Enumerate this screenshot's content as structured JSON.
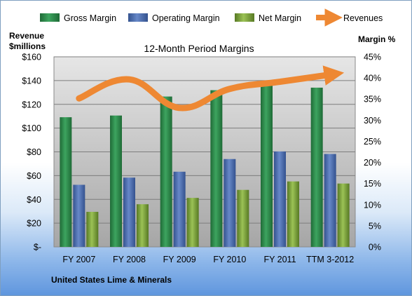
{
  "chart_data": {
    "type": "bar",
    "title": "12-Month Period Margins",
    "company": "United States Lime & Minerals",
    "left_axis_label_line1": "Revenue",
    "left_axis_label_line2": "$millions",
    "right_axis_label": "Margin %",
    "categories": [
      "FY 2007",
      "FY 2008",
      "FY 2009",
      "FY 2010",
      "FY 2011",
      "TTM 3-2012"
    ],
    "left_axis": {
      "min": 0,
      "max": 160,
      "ticks": [
        0,
        20,
        40,
        60,
        80,
        100,
        120,
        140,
        160
      ],
      "tick_labels": [
        "$-",
        "$20",
        "$40",
        "$60",
        "$80",
        "$100",
        "$120",
        "$140",
        "$160"
      ]
    },
    "right_axis": {
      "min": 0,
      "max": 45,
      "ticks": [
        0,
        5,
        10,
        15,
        20,
        25,
        30,
        35,
        40,
        45
      ],
      "tick_labels": [
        "0%",
        "5%",
        "10%",
        "15%",
        "20%",
        "25%",
        "30%",
        "35%",
        "40%",
        "45%"
      ]
    },
    "series": [
      {
        "name": "Gross Margin",
        "kind": "bar",
        "axis": "right",
        "color": "#2e8b4a",
        "values": [
          30.7,
          31.1,
          35.6,
          37.1,
          38.4,
          37.7
        ]
      },
      {
        "name": "Operating Margin",
        "kind": "bar",
        "axis": "right",
        "color": "#4f6fb0",
        "values": [
          14.7,
          16.4,
          17.8,
          20.8,
          22.6,
          22.0
        ]
      },
      {
        "name": "Net Margin",
        "kind": "bar",
        "axis": "right",
        "color": "#7aa33c",
        "values": [
          8.3,
          10.1,
          11.6,
          13.5,
          15.5,
          15.0
        ]
      },
      {
        "name": "Revenues",
        "kind": "line",
        "axis": "left",
        "color": "#ee8833",
        "values": [
          125,
          141,
          117,
          133,
          139,
          145
        ]
      }
    ],
    "grid": true,
    "legend_position": "top"
  }
}
